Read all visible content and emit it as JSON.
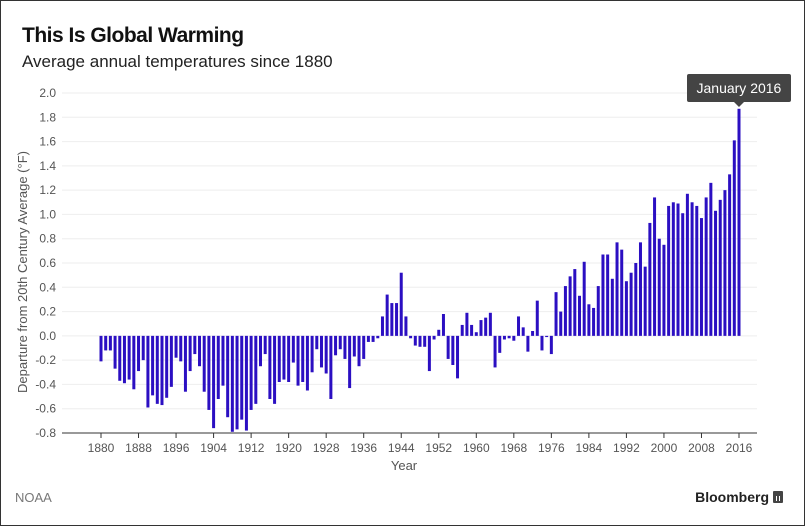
{
  "header": {
    "title": "This Is Global Warming",
    "subtitle": "Average annual temperatures since 1880"
  },
  "footer": {
    "source": "NOAA",
    "brand": "Bloomberg"
  },
  "tooltip": {
    "label": "January 2016"
  },
  "colors": {
    "bar": "#2b0fc2",
    "grid": "#eeeeee",
    "axis": "#333333",
    "tooltip_bg": "#444444"
  },
  "chart_data": {
    "type": "bar",
    "title": "This Is Global Warming",
    "subtitle": "Average annual temperatures since 1880",
    "xlabel": "Year",
    "ylabel": "Departure from 20th Century Average (°F)",
    "ylim": [
      -0.8,
      2.0
    ],
    "yticks": [
      "2.0",
      "1.8",
      "1.6",
      "1.4",
      "1.2",
      "1.0",
      "0.8",
      "0.6",
      "0.4",
      "0.2",
      "0.0",
      "-0.2",
      "-0.4",
      "-0.6",
      "-0.8"
    ],
    "xticks": [
      "1880",
      "1888",
      "1896",
      "1904",
      "1912",
      "1920",
      "1928",
      "1936",
      "1944",
      "1952",
      "1960",
      "1968",
      "1976",
      "1984",
      "1992",
      "2000",
      "2008",
      "2016"
    ],
    "grid": true,
    "annotation": "January 2016",
    "x": [
      1880,
      1881,
      1882,
      1883,
      1884,
      1885,
      1886,
      1887,
      1888,
      1889,
      1890,
      1891,
      1892,
      1893,
      1894,
      1895,
      1896,
      1897,
      1898,
      1899,
      1900,
      1901,
      1902,
      1903,
      1904,
      1905,
      1906,
      1907,
      1908,
      1909,
      1910,
      1911,
      1912,
      1913,
      1914,
      1915,
      1916,
      1917,
      1918,
      1919,
      1920,
      1921,
      1922,
      1923,
      1924,
      1925,
      1926,
      1927,
      1928,
      1929,
      1930,
      1931,
      1932,
      1933,
      1934,
      1935,
      1936,
      1937,
      1938,
      1939,
      1940,
      1941,
      1942,
      1943,
      1944,
      1945,
      1946,
      1947,
      1948,
      1949,
      1950,
      1951,
      1952,
      1953,
      1954,
      1955,
      1956,
      1957,
      1958,
      1959,
      1960,
      1961,
      1962,
      1963,
      1964,
      1965,
      1966,
      1967,
      1968,
      1969,
      1970,
      1971,
      1972,
      1973,
      1974,
      1975,
      1976,
      1977,
      1978,
      1979,
      1980,
      1981,
      1982,
      1983,
      1984,
      1985,
      1986,
      1987,
      1988,
      1989,
      1990,
      1991,
      1992,
      1993,
      1994,
      1995,
      1996,
      1997,
      1998,
      1999,
      2000,
      2001,
      2002,
      2003,
      2004,
      2005,
      2006,
      2007,
      2008,
      2009,
      2010,
      2011,
      2012,
      2013,
      2014,
      2015,
      2016
    ],
    "values": [
      -0.21,
      -0.12,
      -0.12,
      -0.27,
      -0.37,
      -0.39,
      -0.36,
      -0.44,
      -0.29,
      -0.2,
      -0.59,
      -0.49,
      -0.56,
      -0.57,
      -0.51,
      -0.42,
      -0.18,
      -0.21,
      -0.46,
      -0.29,
      -0.15,
      -0.25,
      -0.46,
      -0.61,
      -0.76,
      -0.52,
      -0.41,
      -0.67,
      -0.79,
      -0.77,
      -0.69,
      -0.78,
      -0.61,
      -0.56,
      -0.25,
      -0.15,
      -0.52,
      -0.56,
      -0.38,
      -0.36,
      -0.38,
      -0.22,
      -0.41,
      -0.38,
      -0.45,
      -0.3,
      -0.11,
      -0.26,
      -0.31,
      -0.52,
      -0.16,
      -0.11,
      -0.19,
      -0.43,
      -0.17,
      -0.25,
      -0.19,
      -0.05,
      -0.05,
      -0.02,
      0.16,
      0.34,
      0.27,
      0.27,
      0.52,
      0.16,
      -0.02,
      -0.08,
      -0.09,
      -0.09,
      -0.29,
      -0.03,
      0.05,
      0.18,
      -0.19,
      -0.24,
      -0.35,
      0.09,
      0.19,
      0.09,
      0.03,
      0.13,
      0.15,
      0.19,
      -0.26,
      -0.14,
      -0.03,
      -0.02,
      -0.04,
      0.16,
      0.07,
      -0.13,
      0.04,
      0.29,
      -0.12,
      -0.01,
      -0.15,
      0.36,
      0.2,
      0.41,
      0.49,
      0.55,
      0.33,
      0.61,
      0.26,
      0.23,
      0.41,
      0.67,
      0.67,
      0.47,
      0.77,
      0.71,
      0.45,
      0.52,
      0.6,
      0.77,
      0.57,
      0.93,
      1.14,
      0.8,
      0.75,
      1.07,
      1.1,
      1.09,
      1.01,
      1.17,
      1.1,
      1.07,
      0.97,
      1.14,
      1.26,
      1.03,
      1.12,
      1.2,
      1.33,
      1.61,
      1.87
    ]
  }
}
